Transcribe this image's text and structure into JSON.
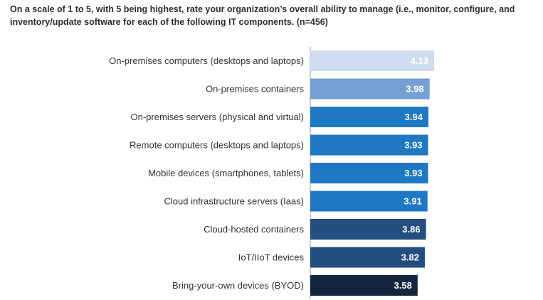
{
  "chart_data": {
    "type": "bar",
    "orientation": "horizontal",
    "title": "On a scale of 1 to 5, with 5 being highest, rate your organization’s overall ability to manage (i.e., monitor, configure, and inventory/update software for each of the following IT components. (n=456)",
    "categories": [
      "On-premises computers (desktops and laptops)",
      "On-premises containers",
      "On-premises servers (physical and virtual)",
      "Remote computers (desktops and laptops)",
      "Mobile devices (smartphones, tablets)",
      "Cloud infrastructure servers (Iaas)",
      "Cloud-hosted containers",
      "IoT/IIoT devices",
      "Bring-your-own devices (BYOD)"
    ],
    "values": [
      4.13,
      3.98,
      3.94,
      3.93,
      3.93,
      3.91,
      3.86,
      3.82,
      3.58
    ],
    "value_labels": [
      "4.13",
      "3.98",
      "3.94",
      "3.93",
      "3.93",
      "3.91",
      "3.86",
      "3.82",
      "3.58"
    ],
    "bar_colors": [
      "#cfdcf0",
      "#769fd5",
      "#1f78c4",
      "#1f78c4",
      "#1f78c4",
      "#1f78c4",
      "#234f80",
      "#234f80",
      "#14263d"
    ],
    "label_colors": [
      "#ffffff",
      "#ffffff",
      "#ffffff",
      "#ffffff",
      "#ffffff",
      "#ffffff",
      "#ffffff",
      "#ffffff",
      "#ffffff"
    ],
    "axis_color": "#9a9a9a",
    "xlim": [
      0,
      4.13
    ],
    "grid": false,
    "legend": "none"
  }
}
